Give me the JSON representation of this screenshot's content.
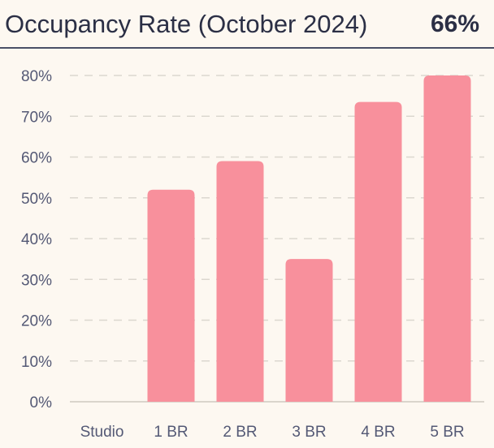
{
  "header": {
    "title": "Occupancy Rate (October 2024)",
    "kpi_value": "66%"
  },
  "colors": {
    "bar": "#f8909c",
    "background": "#fdf8f1",
    "text": "#2b2f45",
    "grid": "#dcd7cf"
  },
  "chart_data": {
    "type": "bar",
    "title": "",
    "xlabel": "",
    "ylabel": "",
    "categories": [
      "Studio",
      "1 BR",
      "2 BR",
      "3 BR",
      "4 BR",
      "5 BR"
    ],
    "values": [
      0,
      52,
      59,
      35,
      73.5,
      80
    ],
    "ylim": [
      0,
      80
    ],
    "yticks": [
      0,
      10,
      20,
      30,
      40,
      50,
      60,
      70,
      80
    ],
    "ytick_labels": [
      "0%",
      "10%",
      "20%",
      "30%",
      "40%",
      "50%",
      "60%",
      "70%",
      "80%"
    ],
    "grid": true,
    "legend": "none"
  }
}
